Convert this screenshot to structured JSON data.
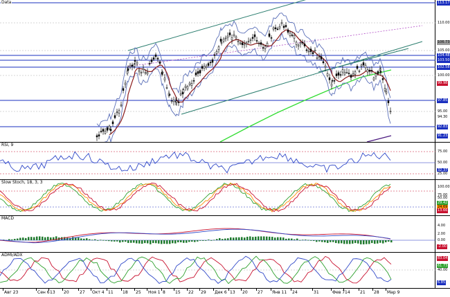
{
  "panes": {
    "price": {
      "title": "Data",
      "levels": [
        {
          "label": "113.17",
          "color": "#1a2fbf",
          "text": "#fff"
        },
        {
          "label": "110.00",
          "color": "#fff",
          "text": "#000"
        },
        {
          "label": "106.73",
          "color": "#9b9b9b",
          "text": "#000"
        },
        {
          "label": "105.00",
          "color": "#fff",
          "text": "#000"
        },
        {
          "label": "104.48",
          "color": "#1a2fbf",
          "text": "#fff"
        },
        {
          "label": "103.50",
          "color": "#1a2fbf",
          "text": "#fff"
        },
        {
          "label": "102.58",
          "color": "#1a2fbf",
          "text": "#fff"
        },
        {
          "label": "100.00",
          "color": "#fff",
          "text": "#000"
        },
        {
          "label": "99.98",
          "color": "#c8102e",
          "text": "#fff"
        },
        {
          "label": "97.85",
          "color": "#1a2fbf",
          "text": "#fff"
        },
        {
          "label": "95.00",
          "color": "#fff",
          "text": "#000"
        },
        {
          "label": "94.30",
          "color": "#fff",
          "text": "#000"
        },
        {
          "label": "92.83",
          "color": "#1a2fbf",
          "text": "#fff"
        },
        {
          "label": "91.23",
          "color": "#1a2fbf",
          "text": "#fff"
        }
      ]
    },
    "rsi": {
      "title": "RSI, 9",
      "levels": [
        {
          "label": "75.00",
          "color": "#fff",
          "text": "#000"
        },
        {
          "label": "50.00",
          "color": "#fff",
          "text": "#000"
        },
        {
          "label": "32.37",
          "color": "#1a2fbf",
          "text": "#fff"
        },
        {
          "label": "25.00",
          "color": "#fff",
          "text": "#000"
        }
      ]
    },
    "stoch": {
      "title": "Slow Stoch, 18, 3, 3",
      "levels": [
        {
          "label": "100.00",
          "color": "#fff",
          "text": "#000"
        },
        {
          "label": "75.00",
          "color": "#fff",
          "text": "#000"
        },
        {
          "label": "50.00",
          "color": "#fff",
          "text": "#000"
        },
        {
          "label": "29.42",
          "color": "#2ca02c",
          "text": "#fff"
        },
        {
          "label": "24.69",
          "color": "#ff8c00",
          "text": "#000"
        },
        {
          "label": "13.66",
          "color": "#c8102e",
          "text": "#fff"
        }
      ]
    },
    "macd": {
      "title": "MACD",
      "levels": [
        {
          "label": "4.00",
          "color": "#fff",
          "text": "#000"
        },
        {
          "label": "2.00",
          "color": "#fff",
          "text": "#000"
        },
        {
          "label": "0.00",
          "color": "#fff",
          "text": "#000"
        },
        {
          "label": "-2.00",
          "color": "#c8102e",
          "text": "#fff"
        }
      ]
    },
    "adx": {
      "title": "ADMI/ADX",
      "levels": [
        {
          "label": "83.04",
          "color": "#c8102e",
          "text": "#fff"
        },
        {
          "label": "61.73",
          "color": "#2ca02c",
          "text": "#fff"
        },
        {
          "label": "40.00",
          "color": "#fff",
          "text": "#000"
        },
        {
          "label": "6.85",
          "color": "#1a2fbf",
          "text": "#fff"
        }
      ]
    }
  },
  "xaxis": [
    "Авг 23",
    "Сен 6",
    "13",
    "20",
    "27",
    "Окт 4",
    "11",
    "18",
    "25",
    "Ноя 1",
    "8",
    "15",
    "22",
    "29",
    "Дек 6",
    "13",
    "20",
    "27",
    "Янв 11",
    "24",
    "31",
    "Фев 7",
    "14",
    "21",
    "28",
    "Мар 9"
  ]
}
